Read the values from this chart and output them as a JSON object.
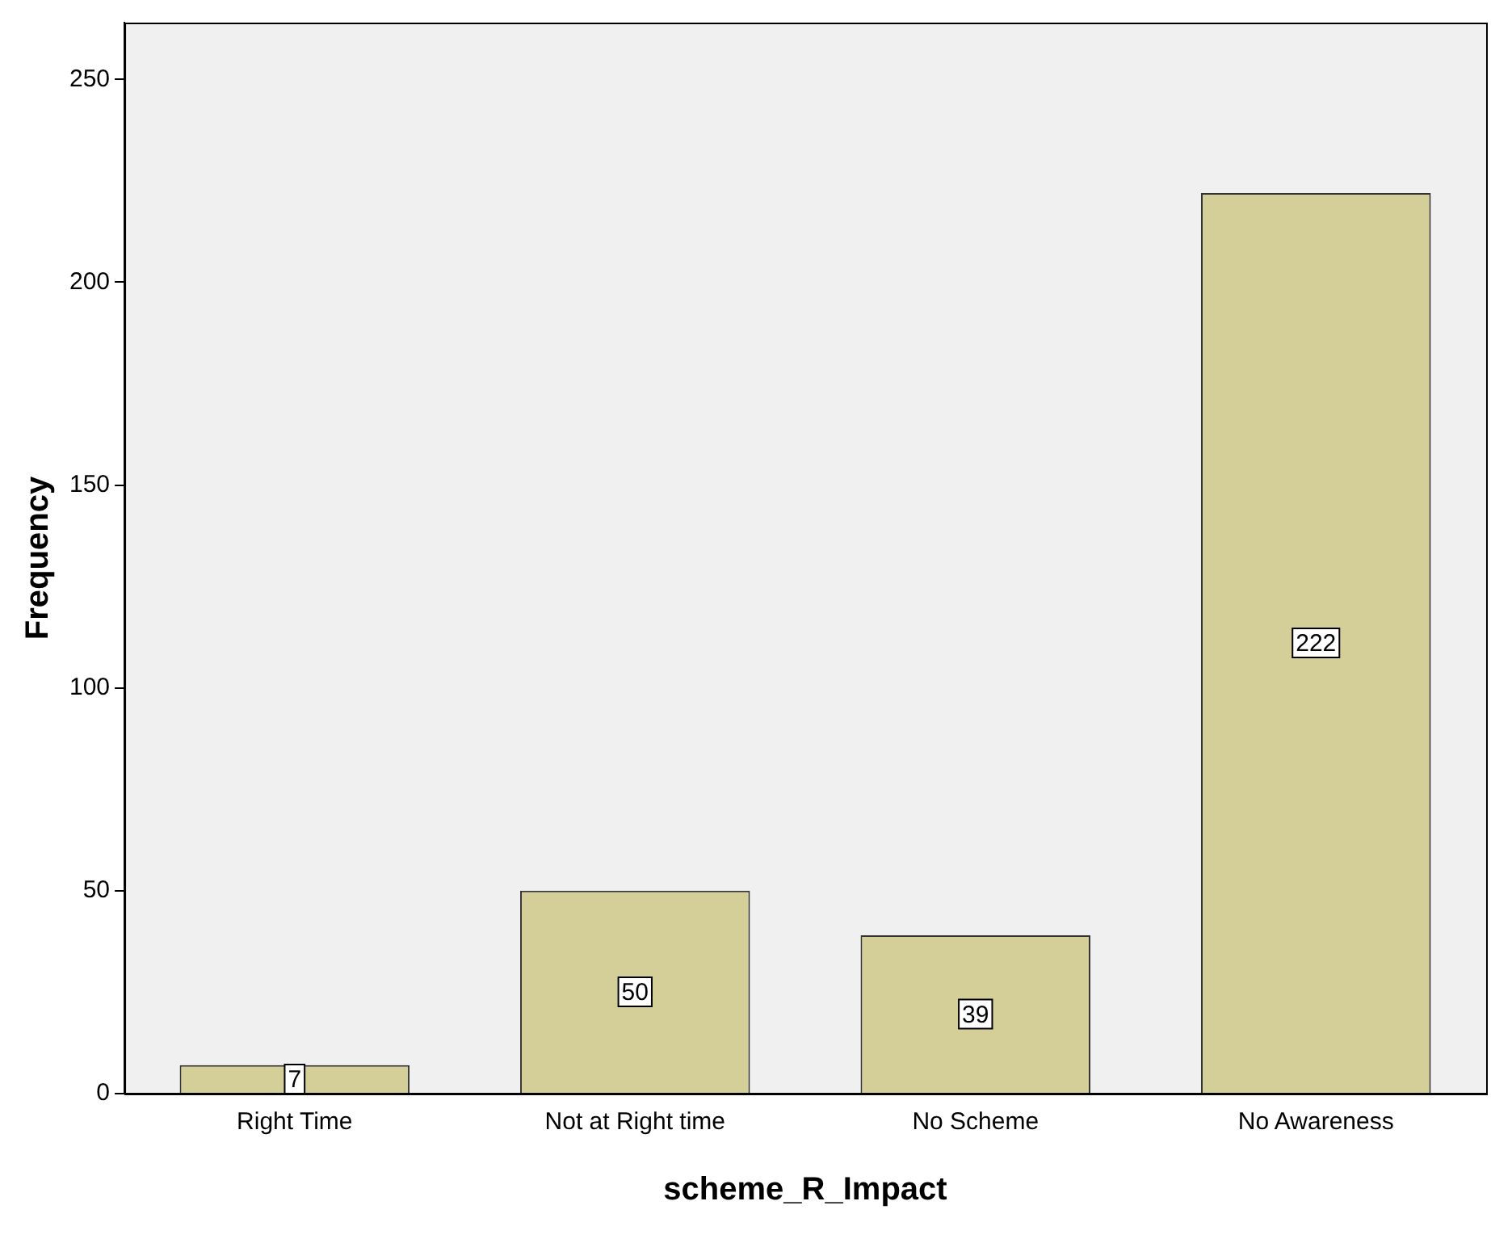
{
  "chart_data": {
    "type": "bar",
    "xlabel": "scheme_R_Impact",
    "ylabel": "Frequency",
    "categories": [
      "Right Time",
      "Not at Right time",
      "No Scheme",
      "No Awareness"
    ],
    "values": [
      7,
      50,
      39,
      222
    ],
    "color": "#d4cf98",
    "ylim": [
      0,
      264
    ],
    "yticks": [
      0,
      50,
      100,
      150,
      200,
      250
    ],
    "grid": false,
    "legend": false,
    "data_labels": true
  }
}
